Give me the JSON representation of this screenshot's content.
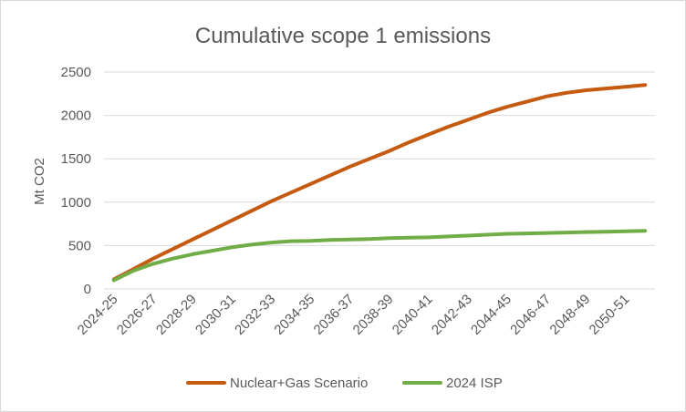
{
  "chart_data": {
    "type": "line",
    "title": "Cumulative scope 1 emissions",
    "xlabel": "",
    "ylabel": "Mt CO2",
    "ylim": [
      0,
      2500
    ],
    "yticks": [
      0,
      500,
      1000,
      1500,
      2000,
      2500
    ],
    "grid": true,
    "legend_position": "bottom",
    "x": [
      "2024-25",
      "2025-26",
      "2026-27",
      "2027-28",
      "2028-29",
      "2029-30",
      "2030-31",
      "2031-32",
      "2032-33",
      "2033-34",
      "2034-35",
      "2035-36",
      "2036-37",
      "2037-38",
      "2038-39",
      "2039-40",
      "2040-41",
      "2041-42",
      "2042-43",
      "2043-44",
      "2044-45",
      "2045-46",
      "2046-47",
      "2047-48",
      "2048-49",
      "2049-50",
      "2050-51",
      "2051-52"
    ],
    "x_tick_labels": [
      "2024-25",
      "2026-27",
      "2028-29",
      "2030-31",
      "2032-33",
      "2034-35",
      "2036-37",
      "2038-39",
      "2040-41",
      "2042-43",
      "2044-45",
      "2046-47",
      "2048-49",
      "2050-51"
    ],
    "series": [
      {
        "name": "Nuclear+Gas Scenario",
        "color": "#c55a11",
        "values": [
          110,
          230,
          350,
          460,
          570,
          680,
          790,
          900,
          1010,
          1110,
          1210,
          1310,
          1410,
          1500,
          1590,
          1690,
          1780,
          1870,
          1950,
          2030,
          2100,
          2160,
          2220,
          2260,
          2290,
          2310,
          2330,
          2350
        ]
      },
      {
        "name": "2024 ISP",
        "color": "#70ad47",
        "values": [
          100,
          210,
          290,
          350,
          400,
          440,
          480,
          510,
          535,
          550,
          555,
          565,
          570,
          575,
          585,
          590,
          595,
          605,
          615,
          625,
          635,
          640,
          645,
          650,
          655,
          660,
          665,
          670
        ]
      }
    ]
  }
}
